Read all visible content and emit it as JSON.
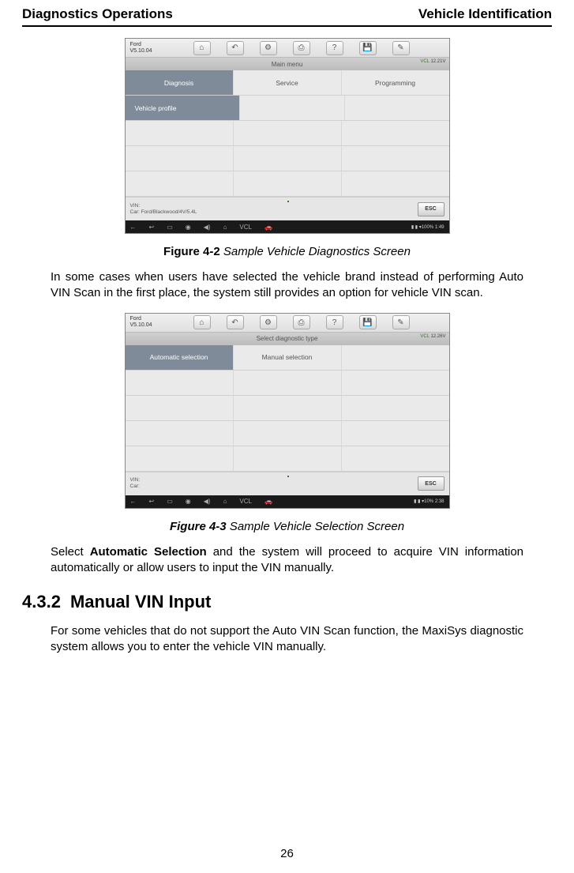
{
  "header": {
    "left": "Diagnostics Operations",
    "right": "Vehicle Identification"
  },
  "screenshot1": {
    "brand": "Ford",
    "version": "V5.10.04",
    "subhead": "Main menu",
    "vcl": "VCL",
    "voltage": "12.21V",
    "cells": {
      "diagnosis": "Diagnosis",
      "service": "Service",
      "programming": "Programming",
      "vehicle_profile": "Vehicle profile"
    },
    "info_line1": "VIN:",
    "info_line2": "Car: Ford/Blackwood/4V/5.4L",
    "esc": "ESC",
    "time": "1:49",
    "battery": "100%"
  },
  "figure1": {
    "label": "Figure 4-2",
    "title": " Sample Vehicle Diagnostics Screen"
  },
  "para1": "In some cases when users have selected the vehicle brand instead of performing Auto VIN Scan in the first place, the system still provides an option for vehicle VIN scan.",
  "screenshot2": {
    "brand": "Ford",
    "version": "V5.10.04",
    "subhead": "Select diagnostic type",
    "vcl": "VCL",
    "voltage": "12.26V",
    "cells": {
      "auto": "Automatic selection",
      "manual": "Manual selection"
    },
    "info_line1": "VIN:",
    "info_line2": "Car:",
    "esc": "ESC",
    "time": "2:38",
    "battery": "10%"
  },
  "figure2": {
    "label": "Figure 4-3",
    "title": " Sample Vehicle Selection Screen"
  },
  "para2a": "Select ",
  "para2b": "Automatic Selection",
  "para2c": " and the system will proceed to acquire VIN information automatically or allow users to input the VIN manually.",
  "section": {
    "num": "4.3.2",
    "title": "Manual VIN Input"
  },
  "para3": "For some vehicles that do not support the Auto VIN Scan function, the MaxiSys diagnostic system allows you to enter the vehicle VIN manually.",
  "page_num": "26",
  "icons": {
    "home": "⌂",
    "back": "↶",
    "gear": "⚙",
    "print": "⎙",
    "help": "?",
    "save": "💾",
    "pencil": "✎",
    "arrow_left": "←",
    "arrow_back": "↩",
    "folder": "▭",
    "camera": "◉",
    "sound": "◀)",
    "house": "⌂",
    "vcl": "VCL",
    "car": "🚗"
  }
}
